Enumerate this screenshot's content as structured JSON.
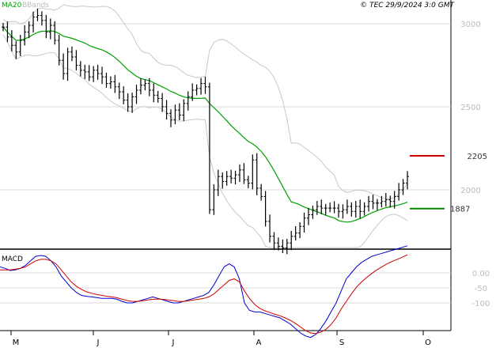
{
  "header": {
    "ma_label": "MA20",
    "bb_label": "BBands",
    "copyright": "© TEC 29/9/2024 3:0 GMT"
  },
  "macd": {
    "label": "MACD"
  },
  "colors": {
    "ma": "#00a000",
    "bbands": "#c8c8c8",
    "price": "#000000",
    "macd": "#0000cc",
    "signal": "#cc0000",
    "resistance": "#cc0000",
    "support": "#008800",
    "grid": "#d8d8d8"
  },
  "chart_data": [
    {
      "type": "line",
      "subtype": "ohlc-bars",
      "title": "",
      "x_months": [
        "M",
        "J",
        "J",
        "A",
        "S",
        "O"
      ],
      "y_ticks": [
        "3000",
        "2500",
        "2000"
      ],
      "y_tick_values": [
        3000,
        2500,
        2000
      ],
      "ylim": [
        1640,
        3100
      ],
      "levels": [
        {
          "label": "2205",
          "value": 2205,
          "role": "resistance"
        },
        {
          "label": "1887",
          "value": 1887,
          "role": "support"
        }
      ],
      "price": [
        2980,
        2920,
        2870,
        2830,
        2900,
        2950,
        2990,
        3040,
        3050,
        3020,
        2950,
        2990,
        2900,
        2780,
        2700,
        2830,
        2800,
        2750,
        2720,
        2710,
        2680,
        2720,
        2700,
        2680,
        2640,
        2650,
        2620,
        2590,
        2540,
        2500,
        2560,
        2600,
        2630,
        2640,
        2600,
        2570,
        2550,
        2500,
        2460,
        2420,
        2480,
        2450,
        2520,
        2560,
        2600,
        2610,
        2640,
        2620,
        1880,
        2000,
        2080,
        2050,
        2080,
        2070,
        2090,
        2120,
        2060,
        2040,
        2180,
        2010,
        1960,
        1810,
        1720,
        1680,
        1660,
        1650,
        1680,
        1720,
        1740,
        1780,
        1830,
        1850,
        1880,
        1900,
        1890,
        1890,
        1890,
        1890,
        1870,
        1880,
        1900,
        1870,
        1900,
        1870,
        1900,
        1930,
        1920,
        1920,
        1930,
        1940,
        1930,
        1960,
        2000,
        2040,
        2080
      ]
    },
    {
      "type": "line",
      "title": "",
      "series": [
        {
          "name": "MACD",
          "values": [
            20,
            15,
            8,
            10,
            15,
            25,
            40,
            55,
            58,
            55,
            40,
            20,
            -10,
            -30,
            -50,
            -65,
            -75,
            -78,
            -80,
            -82,
            -85,
            -85,
            -85,
            -88,
            -95,
            -100,
            -100,
            -95,
            -90,
            -85,
            -80,
            -85,
            -90,
            -95,
            -100,
            -100,
            -95,
            -90,
            -85,
            -80,
            -75,
            -65,
            -40,
            -10,
            20,
            30,
            20,
            -20,
            -100,
            -125,
            -130,
            -130,
            -135,
            -140,
            -145,
            -150,
            -160,
            -170,
            -185,
            -200,
            -210,
            -215,
            -205,
            -185,
            -160,
            -130,
            -100,
            -60,
            -20,
            0,
            20,
            35,
            45,
            55,
            60,
            65,
            70,
            75,
            80,
            85,
            90
          ]
        },
        {
          "name": "Signal",
          "values": [
            10,
            10,
            10,
            12,
            15,
            20,
            30,
            40,
            45,
            45,
            40,
            30,
            10,
            -10,
            -30,
            -45,
            -55,
            -63,
            -68,
            -72,
            -75,
            -78,
            -80,
            -83,
            -88,
            -92,
            -95,
            -95,
            -93,
            -90,
            -88,
            -87,
            -88,
            -90,
            -92,
            -95,
            -95,
            -93,
            -90,
            -88,
            -85,
            -80,
            -70,
            -55,
            -40,
            -25,
            -20,
            -30,
            -60,
            -85,
            -105,
            -118,
            -126,
            -132,
            -138,
            -143,
            -150,
            -158,
            -168,
            -180,
            -192,
            -200,
            -202,
            -197,
            -188,
            -172,
            -150,
            -120,
            -95,
            -70,
            -48,
            -30,
            -15,
            -2,
            10,
            20,
            30,
            38,
            45,
            52,
            60
          ]
        }
      ],
      "y_ticks": [
        "0.00",
        "-50",
        "-100"
      ],
      "y_tick_values": [
        0,
        -50,
        -100
      ],
      "ylim": [
        -250,
        90
      ]
    }
  ]
}
